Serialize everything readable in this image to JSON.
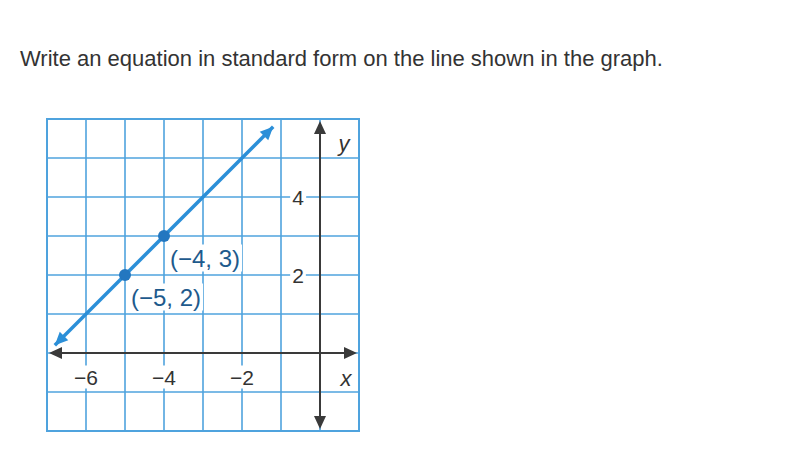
{
  "chart_data": {
    "type": "line",
    "title": "Write an equation in standard form on the line shown in the graph.",
    "x_label": "x",
    "y_label": "y",
    "xlim": [
      -7,
      1
    ],
    "ylim": [
      -2,
      6
    ],
    "xticks": [
      {
        "value": -6,
        "label": "−6"
      },
      {
        "value": -4,
        "label": "−4"
      },
      {
        "value": -2,
        "label": "−2"
      }
    ],
    "yticks": [
      2,
      4
    ],
    "grid": true,
    "series": [
      {
        "type": "line",
        "color": "#2b8fd8",
        "line_style": "solid",
        "marker": "arrow",
        "x": [
          -6.8,
          -1.2
        ],
        "values": [
          0.2,
          5.8
        ]
      },
      {
        "type": "scatter",
        "color": "#2377c0",
        "marker": "circle",
        "x": [
          -5,
          -4
        ],
        "values": [
          2,
          3
        ]
      }
    ],
    "annotations": [
      {
        "text": "(−4, 3)",
        "x": -4,
        "y": 3
      },
      {
        "text": "(−5, 2)",
        "x": -5,
        "y": 2
      }
    ]
  }
}
